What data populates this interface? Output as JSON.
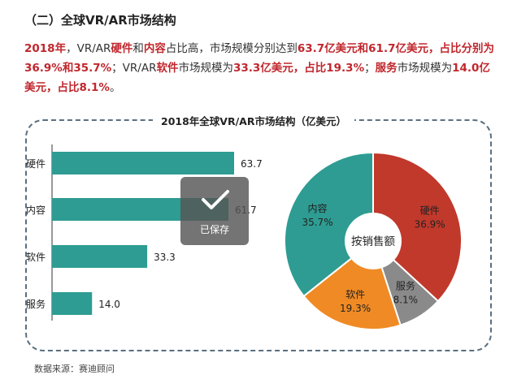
{
  "heading": "（二）全球VR/AR市场结构",
  "intro": [
    {
      "t": "2018年",
      "hl": true
    },
    {
      "t": "，VR/AR",
      "hl": false
    },
    {
      "t": "硬件",
      "hl": true
    },
    {
      "t": "和",
      "hl": false
    },
    {
      "t": "内容",
      "hl": true
    },
    {
      "t": "占比高，市场规模分别达到",
      "hl": false
    },
    {
      "t": "63.7亿美元和61.7亿美元，占比分别为36.9%和35.7%",
      "hl": true
    },
    {
      "t": "；VR/AR",
      "hl": false
    },
    {
      "t": "软件",
      "hl": true
    },
    {
      "t": "市场规模为",
      "hl": false
    },
    {
      "t": "33.3亿美元，占比19.3%",
      "hl": true
    },
    {
      "t": "；",
      "hl": false
    },
    {
      "t": "服务",
      "hl": true
    },
    {
      "t": "市场规模为",
      "hl": false
    },
    {
      "t": "14.0亿美元，占比8.1%",
      "hl": true
    },
    {
      "t": "。",
      "hl": false
    }
  ],
  "source": "数据来源：赛迪顾问",
  "toast": {
    "label": "已保存",
    "icon": "checkmark-icon"
  },
  "colors": {
    "teal": "#2e9c92",
    "red": "#c0392b",
    "orange": "#f08a24",
    "gray": "#8a8a8a",
    "highlight": "#c0272d",
    "frame": "#5a6f80"
  },
  "chart_data": [
    {
      "type": "bar",
      "orientation": "horizontal",
      "title": "2018年全球VR/AR市场结构（亿美元）",
      "categories": [
        "硬件",
        "内容",
        "软件",
        "服务"
      ],
      "values": [
        63.7,
        61.7,
        33.3,
        14.0
      ],
      "value_labels": [
        "63.7",
        "61.7",
        "33.3",
        "14.0"
      ],
      "xlim": [
        0,
        70
      ],
      "grid": false,
      "color": "#2e9c92"
    },
    {
      "type": "pie",
      "donut": true,
      "center_label": "按销售额",
      "slices": [
        {
          "name": "硬件",
          "value": 36.9,
          "label": "36.9%",
          "color": "#c0392b"
        },
        {
          "name": "服务",
          "value": 8.1,
          "label": "8.1%",
          "color": "#8a8a8a"
        },
        {
          "name": "软件",
          "value": 19.3,
          "label": "19.3%",
          "color": "#f08a24"
        },
        {
          "name": "内容",
          "value": 35.7,
          "label": "35.7%",
          "color": "#2e9c92"
        }
      ]
    }
  ]
}
